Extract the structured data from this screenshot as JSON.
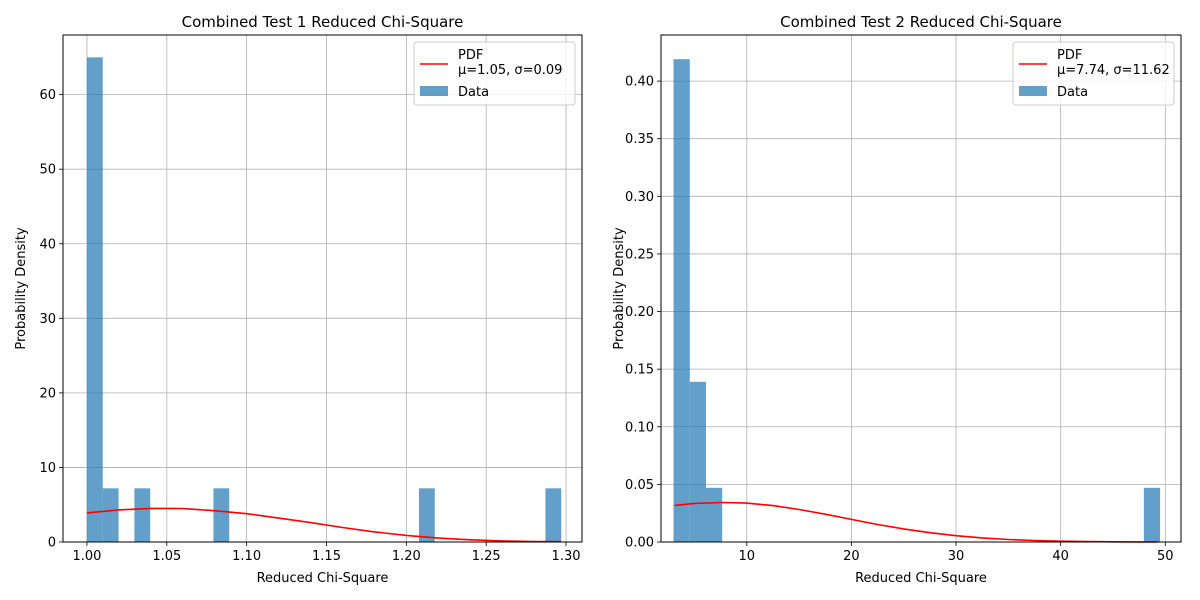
{
  "colors": {
    "bar": "#1f77b4",
    "pdf": "#ff0000",
    "grid": "#b0b0b0"
  },
  "chart_data": [
    {
      "type": "bar",
      "title": "Combined Test 1 Reduced Chi-Square",
      "xlabel": "Reduced Chi-Square",
      "ylabel": "Probability Density",
      "xlim": [
        0.985,
        1.31
      ],
      "ylim": [
        0,
        68
      ],
      "xticks": [
        1.0,
        1.05,
        1.1,
        1.15,
        1.2,
        1.25,
        1.3
      ],
      "xtick_labels": [
        "1.00",
        "1.05",
        "1.10",
        "1.15",
        "1.20",
        "1.25",
        "1.30"
      ],
      "yticks": [
        0,
        10,
        20,
        30,
        40,
        50,
        60
      ],
      "ytick_labels": [
        "0",
        "10",
        "20",
        "30",
        "40",
        "50",
        "60"
      ],
      "grid": true,
      "legend": {
        "position": "top-right",
        "entries": [
          "PDF\nμ=1.05, σ=0.09",
          "Data"
        ]
      },
      "histogram": {
        "bin_start": 1.0,
        "bin_width": 0.0099,
        "counts_density": [
          65,
          7.2,
          0,
          7.2,
          0,
          0,
          0,
          0,
          7.2,
          0,
          0,
          0,
          0,
          0,
          0,
          0,
          0,
          0,
          0,
          0,
          0,
          7.2,
          0,
          0,
          0,
          0,
          0,
          0,
          0,
          7.2
        ]
      },
      "series": [
        {
          "name": "PDF\nμ=1.05, σ=0.09",
          "type": "line",
          "x": [
            1.0,
            1.02,
            1.04,
            1.05,
            1.06,
            1.08,
            1.1,
            1.12,
            1.14,
            1.16,
            1.18,
            1.2,
            1.22,
            1.24,
            1.26,
            1.28,
            1.297
          ],
          "y": [
            3.9,
            4.3,
            4.5,
            4.5,
            4.48,
            4.2,
            3.8,
            3.2,
            2.6,
            1.95,
            1.35,
            0.88,
            0.52,
            0.3,
            0.15,
            0.07,
            0.04
          ]
        }
      ]
    },
    {
      "type": "bar",
      "title": "Combined Test 2 Reduced Chi-Square",
      "xlabel": "Reduced Chi-Square",
      "ylabel": "Probability Density",
      "xlim": [
        1.8,
        51.5
      ],
      "ylim": [
        0,
        0.44
      ],
      "xticks": [
        10,
        20,
        30,
        40,
        50
      ],
      "xtick_labels": [
        "10",
        "20",
        "30",
        "40",
        "50"
      ],
      "yticks": [
        0.0,
        0.05,
        0.1,
        0.15,
        0.2,
        0.25,
        0.3,
        0.35,
        0.4
      ],
      "ytick_labels": [
        "0.00",
        "0.05",
        "0.10",
        "0.15",
        "0.20",
        "0.25",
        "0.30",
        "0.35",
        "0.40"
      ],
      "grid": true,
      "legend": {
        "position": "top-right",
        "entries": [
          "PDF\nμ=7.74, σ=11.62",
          "Data"
        ]
      },
      "histogram": {
        "bin_start": 3.0,
        "bin_width": 1.55,
        "counts_density": [
          0.419,
          0.139,
          0.047,
          0,
          0,
          0,
          0,
          0,
          0,
          0,
          0,
          0,
          0,
          0,
          0,
          0,
          0,
          0,
          0,
          0,
          0,
          0,
          0,
          0,
          0,
          0,
          0,
          0,
          0,
          0.047
        ]
      },
      "series": [
        {
          "name": "PDF\nμ=7.74, σ=11.62",
          "type": "line",
          "x": [
            3.1,
            5,
            7.74,
            10,
            12.5,
            15,
            17.5,
            20,
            22.5,
            25,
            27.5,
            30,
            32.5,
            35,
            37.5,
            40,
            42.5,
            45,
            47.5,
            49.3
          ],
          "y": [
            0.0318,
            0.0335,
            0.0343,
            0.0338,
            0.0316,
            0.0282,
            0.0241,
            0.0196,
            0.0152,
            0.0114,
            0.0081,
            0.0055,
            0.0036,
            0.0022,
            0.0013,
            0.0007,
            0.0004,
            0.0002,
            0.0001,
            5e-05
          ]
        }
      ]
    }
  ]
}
